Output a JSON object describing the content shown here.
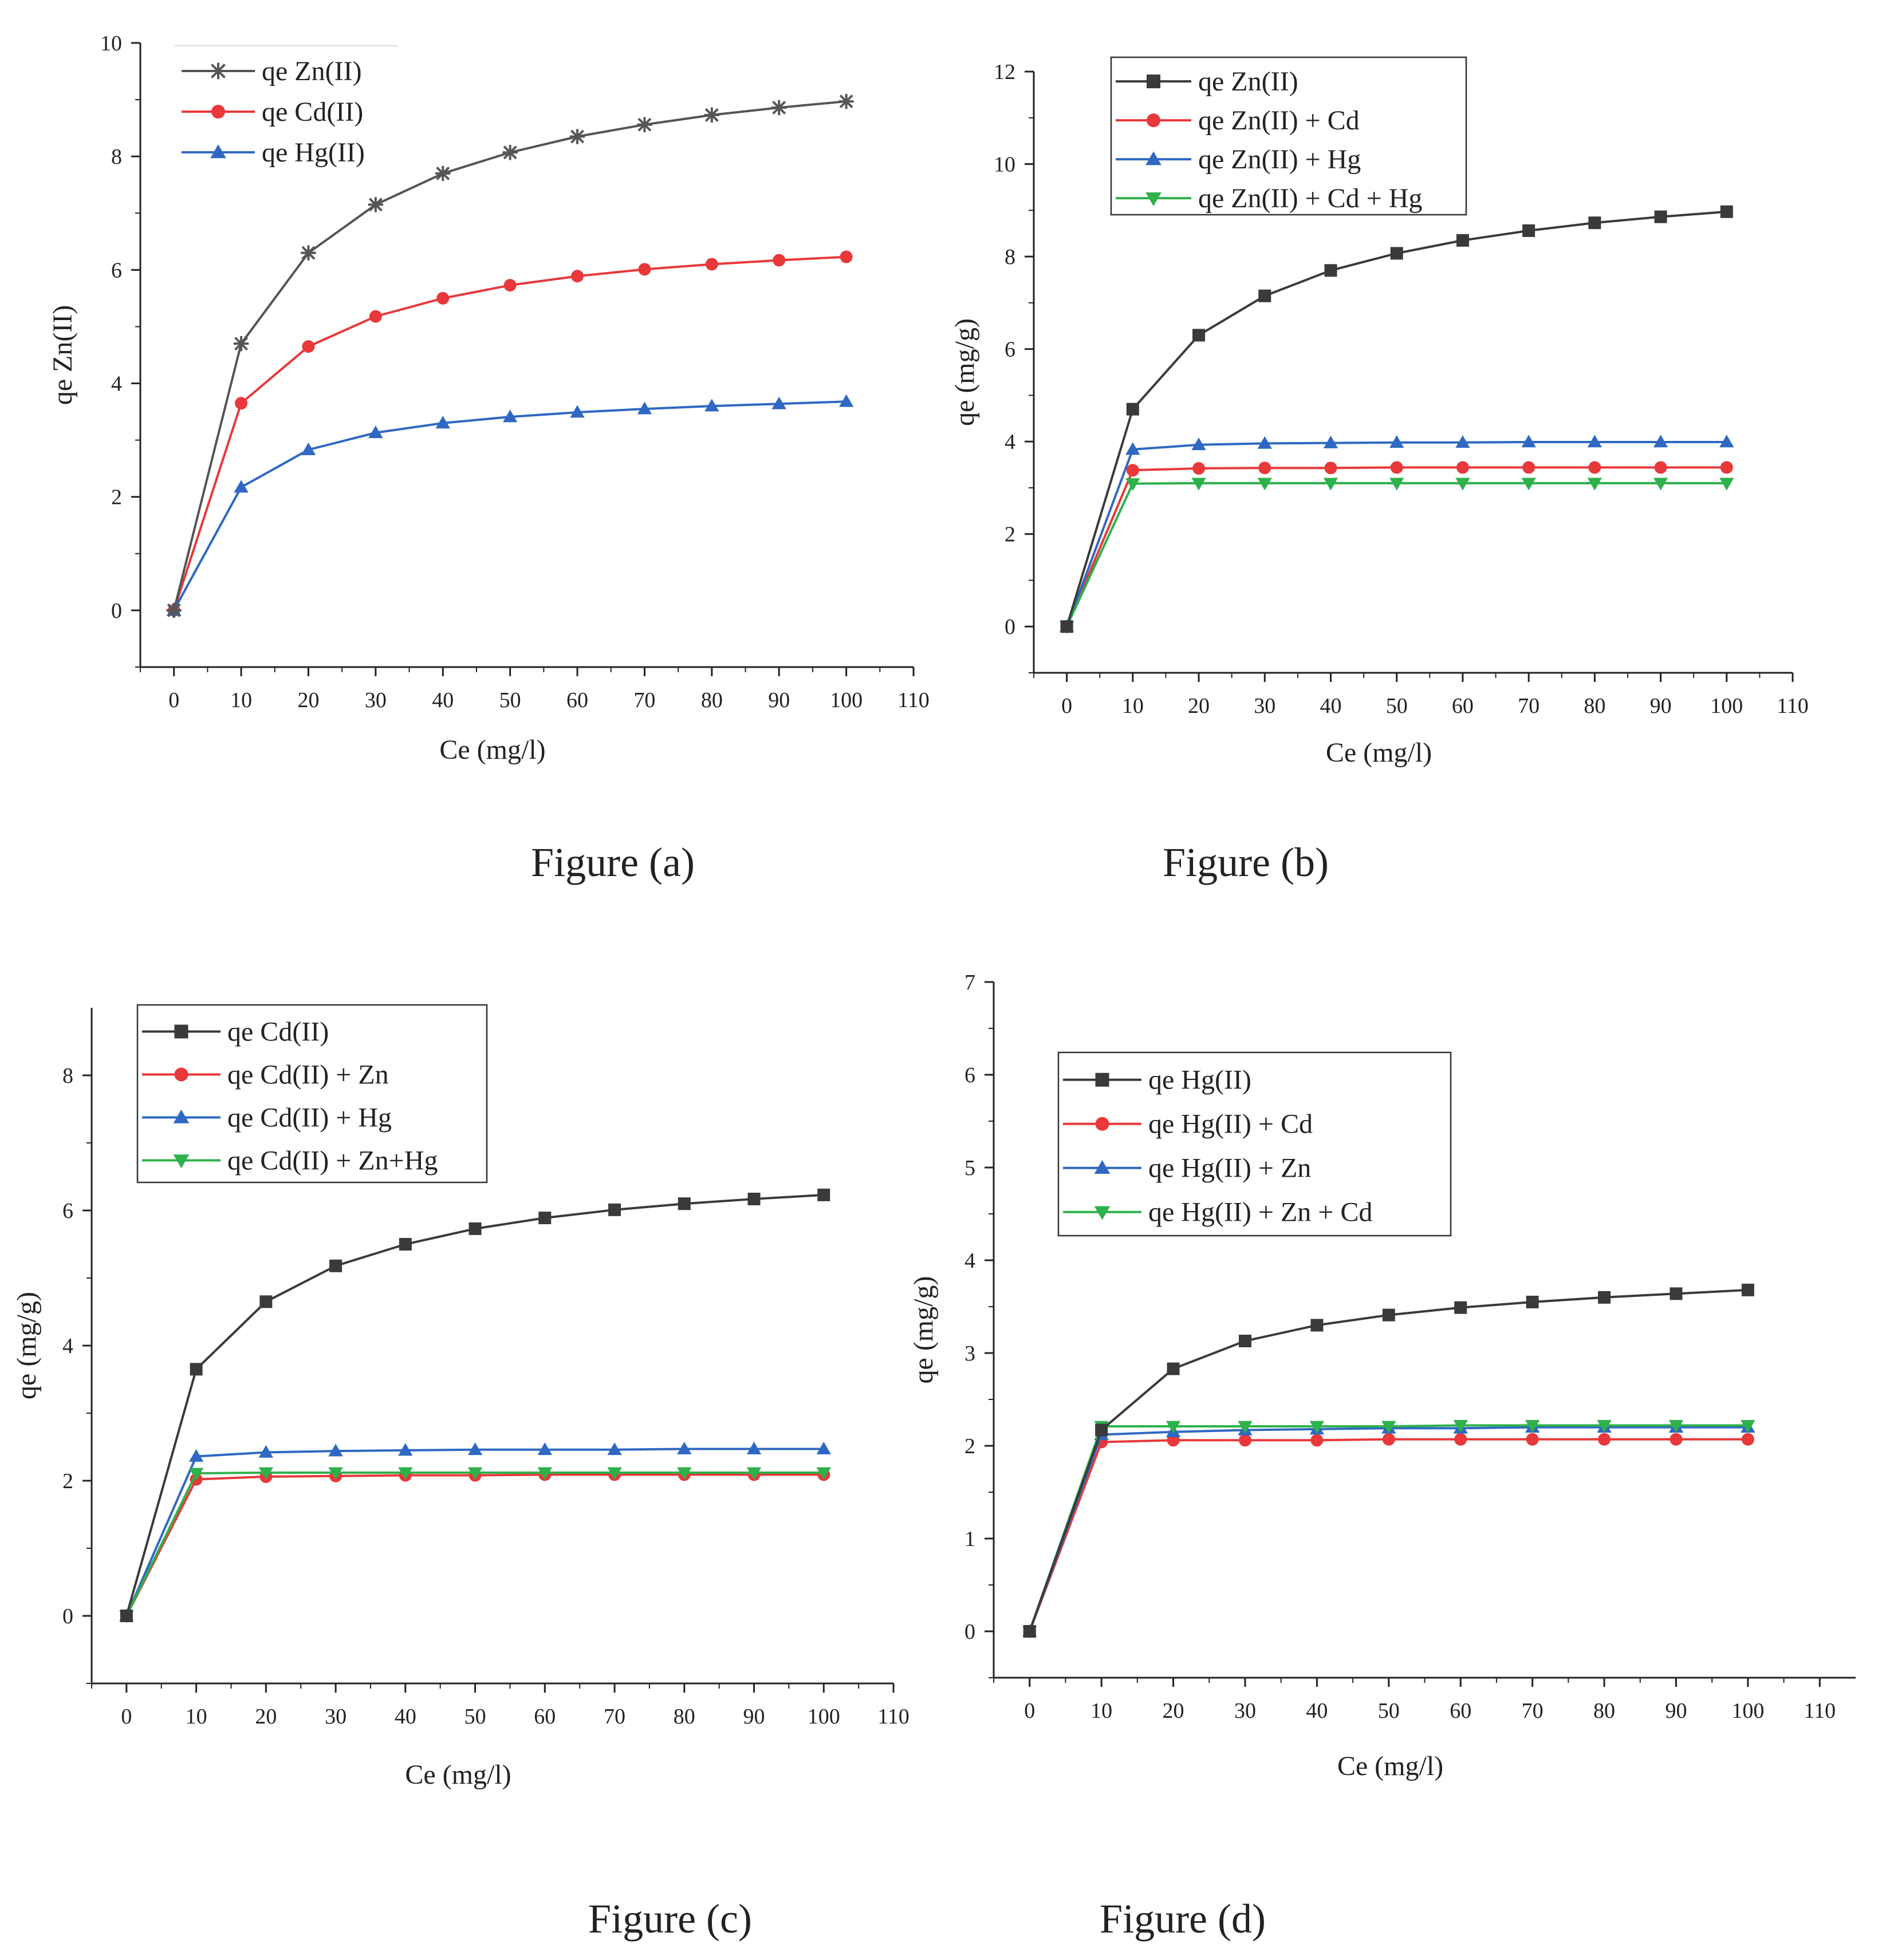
{
  "chart_data": [
    {
      "id": "a",
      "type": "line",
      "caption": "Figure (a)",
      "xlabel": "Ce (mg/l)",
      "ylabel": "qe Zn(II)",
      "xlim": [
        -5,
        110
      ],
      "ylim": [
        -1,
        10
      ],
      "xticks": [
        0,
        10,
        20,
        30,
        40,
        50,
        60,
        70,
        80,
        90,
        100,
        110
      ],
      "yticks": [
        0,
        2,
        4,
        6,
        8,
        10
      ],
      "legend_position": "top-left",
      "x": [
        0,
        10,
        20,
        30,
        40,
        50,
        60,
        70,
        80,
        90,
        100
      ],
      "series": [
        {
          "name": "qe Zn(II)",
          "color": "#555555",
          "marker": "star",
          "values": [
            0,
            4.7,
            6.3,
            7.15,
            7.7,
            8.07,
            8.35,
            8.56,
            8.73,
            8.86,
            8.97
          ]
        },
        {
          "name": "qe Cd(II)",
          "color": "#e8383a",
          "marker": "circle",
          "values": [
            0,
            3.65,
            4.65,
            5.18,
            5.5,
            5.73,
            5.89,
            6.01,
            6.1,
            6.17,
            6.23
          ]
        },
        {
          "name": "qe Hg(II)",
          "color": "#2f68c2",
          "marker": "triangle-up",
          "values": [
            0,
            2.17,
            2.83,
            3.13,
            3.3,
            3.41,
            3.49,
            3.55,
            3.6,
            3.64,
            3.68
          ]
        }
      ]
    },
    {
      "id": "b",
      "type": "line",
      "caption": "Figure (b)",
      "xlabel": "Ce (mg/l)",
      "ylabel": "qe (mg/g)",
      "xlim": [
        -5,
        110
      ],
      "ylim": [
        -1,
        12
      ],
      "xticks": [
        0,
        10,
        20,
        30,
        40,
        50,
        60,
        70,
        80,
        90,
        100,
        110
      ],
      "yticks": [
        0,
        2,
        4,
        6,
        8,
        10,
        12
      ],
      "legend_position": "top-left",
      "x": [
        0,
        10,
        20,
        30,
        40,
        50,
        60,
        70,
        80,
        90,
        100
      ],
      "series": [
        {
          "name": "qe Zn(II)",
          "color": "#3a3a3a",
          "marker": "square",
          "values": [
            0,
            4.7,
            6.3,
            7.15,
            7.7,
            8.07,
            8.35,
            8.56,
            8.73,
            8.86,
            8.97
          ]
        },
        {
          "name": "qe Zn(II) + Cd",
          "color": "#e8383a",
          "marker": "circle",
          "values": [
            0,
            3.38,
            3.42,
            3.43,
            3.43,
            3.44,
            3.44,
            3.44,
            3.44,
            3.44,
            3.44
          ]
        },
        {
          "name": "qe Zn(II) + Hg",
          "color": "#2f68c2",
          "marker": "triangle-up",
          "values": [
            0,
            3.83,
            3.93,
            3.96,
            3.97,
            3.98,
            3.98,
            3.99,
            3.99,
            3.99,
            3.99
          ]
        },
        {
          "name": "qe Zn(II) +  Cd + Hg",
          "color": "#2db14b",
          "marker": "triangle-down",
          "values": [
            0,
            3.09,
            3.1,
            3.1,
            3.1,
            3.1,
            3.1,
            3.1,
            3.1,
            3.1,
            3.1
          ]
        }
      ]
    },
    {
      "id": "c",
      "type": "line",
      "caption": "Figure (c)",
      "xlabel": "Ce (mg/l)",
      "ylabel": "qe (mg/g)",
      "xlim": [
        -5,
        110
      ],
      "ylim": [
        -1,
        9
      ],
      "xticks": [
        0,
        10,
        20,
        30,
        40,
        50,
        60,
        70,
        80,
        90,
        100,
        110
      ],
      "yticks": [
        0,
        2,
        4,
        6,
        8
      ],
      "legend_position": "top-left",
      "x": [
        0,
        10,
        20,
        30,
        40,
        50,
        60,
        70,
        80,
        90,
        100
      ],
      "series": [
        {
          "name": "qe Cd(II)",
          "color": "#3a3a3a",
          "marker": "square",
          "values": [
            0,
            3.65,
            4.65,
            5.18,
            5.5,
            5.73,
            5.89,
            6.01,
            6.1,
            6.17,
            6.23
          ]
        },
        {
          "name": "qe Cd(II) + Zn",
          "color": "#e8383a",
          "marker": "circle",
          "values": [
            0,
            2.02,
            2.06,
            2.07,
            2.08,
            2.08,
            2.09,
            2.09,
            2.09,
            2.09,
            2.09
          ]
        },
        {
          "name": "qe Cd(II) + Hg",
          "color": "#2f68c2",
          "marker": "triangle-up",
          "values": [
            0,
            2.36,
            2.42,
            2.44,
            2.45,
            2.46,
            2.46,
            2.46,
            2.47,
            2.47,
            2.47
          ]
        },
        {
          "name": "qe Cd(II) + Zn+Hg",
          "color": "#2db14b",
          "marker": "triangle-down",
          "values": [
            0,
            2.11,
            2.12,
            2.12,
            2.12,
            2.12,
            2.12,
            2.12,
            2.12,
            2.12,
            2.12
          ]
        }
      ]
    },
    {
      "id": "d",
      "type": "line",
      "caption": "Figure (d)",
      "xlabel": "Ce (mg/l)",
      "ylabel": "qe (mg/g)",
      "xlim": [
        -5,
        115
      ],
      "ylim": [
        -0.5,
        7
      ],
      "xticks": [
        0,
        10,
        20,
        30,
        40,
        50,
        60,
        70,
        80,
        90,
        100,
        110
      ],
      "yticks": [
        0,
        1,
        2,
        3,
        4,
        5,
        6,
        7
      ],
      "legend_position": "top-left",
      "x": [
        0,
        10,
        20,
        30,
        40,
        50,
        60,
        70,
        80,
        90,
        100
      ],
      "series": [
        {
          "name": "qe Hg(II)",
          "color": "#3a3a3a",
          "marker": "square",
          "values": [
            0,
            2.17,
            2.83,
            3.13,
            3.3,
            3.41,
            3.49,
            3.55,
            3.6,
            3.64,
            3.68
          ]
        },
        {
          "name": "qe Hg(II) + Cd",
          "color": "#e8383a",
          "marker": "circle",
          "values": [
            0,
            2.04,
            2.06,
            2.06,
            2.06,
            2.07,
            2.07,
            2.07,
            2.07,
            2.07,
            2.07
          ]
        },
        {
          "name": "qe Hg(II) + Zn",
          "color": "#2f68c2",
          "marker": "triangle-up",
          "values": [
            0,
            2.12,
            2.15,
            2.17,
            2.18,
            2.19,
            2.19,
            2.2,
            2.2,
            2.2,
            2.2
          ]
        },
        {
          "name": "qe Hg(II) + Zn + Cd",
          "color": "#2db14b",
          "marker": "triangle-down",
          "values": [
            0,
            2.21,
            2.21,
            2.21,
            2.21,
            2.21,
            2.22,
            2.22,
            2.22,
            2.22,
            2.22
          ]
        }
      ]
    }
  ]
}
